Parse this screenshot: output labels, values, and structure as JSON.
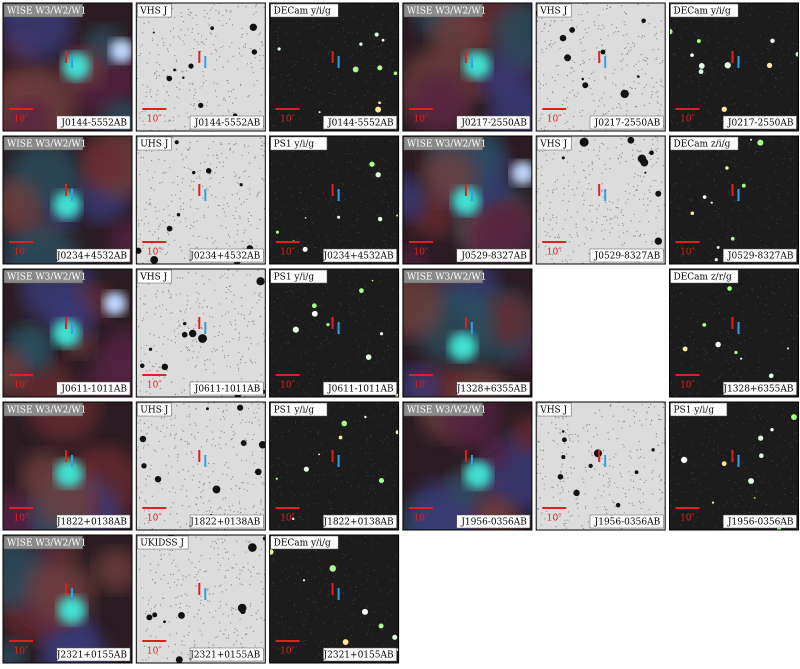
{
  "rows": [
    [
      {
        "band": "WISE W3/W2/W1",
        "object": "J0144-5552AB",
        "scale": "10″"
      },
      {
        "band": "VHS J",
        "object": "J0144-5552AB",
        "scale": "10″"
      },
      {
        "band": "DECam y/i/g",
        "object": "J0144-5552AB",
        "scale": "10″"
      },
      {
        "band": "WISE W3/W2/W1",
        "object": "J0217-2550AB",
        "scale": "10″"
      },
      {
        "band": "VHS J",
        "object": "J0217-2550AB",
        "scale": "10″"
      },
      {
        "band": "DECam y/i/g",
        "object": "J0217-2550AB",
        "scale": "10″"
      }
    ],
    [
      {
        "band": "WISE W3/W2/W1",
        "object": "J0234+4532AB",
        "scale": "10″"
      },
      {
        "band": "UHS J",
        "object": "J0234+4532AB",
        "scale": "10″"
      },
      {
        "band": "PS1 y/i/g",
        "object": "J0234+4532AB",
        "scale": "10″"
      },
      {
        "band": "WISE W3/W2/W1",
        "object": "J0529-8327AB",
        "scale": "10″"
      },
      {
        "band": "VHS J",
        "object": "J0529-8327AB",
        "scale": "10″"
      },
      {
        "band": "DECam z/i/g",
        "object": "J0529-8327AB",
        "scale": "10″"
      }
    ],
    [
      {
        "band": "WISE W3/W2/W1",
        "object": "J0611-1011AB",
        "scale": "10″"
      },
      {
        "band": "VHS J",
        "object": "J0611-1011AB",
        "scale": "10″"
      },
      {
        "band": "PS1 y/i/g",
        "object": "J0611-1011AB",
        "scale": "10″"
      },
      {
        "band": "WISE W3/W2/W1",
        "object": "J1328+6355AB",
        "scale": "10″"
      },
      null,
      {
        "band": "DECam z/r/g",
        "object": "J1328+6355AB",
        "scale": "10″"
      }
    ],
    [
      {
        "band": "WISE W3/W2/W1",
        "object": "J1822+0138AB",
        "scale": "10″"
      },
      {
        "band": "UHS J",
        "object": "J1822+0138AB",
        "scale": "10″"
      },
      {
        "band": "PS1 y/i/g",
        "object": "J1822+0138AB",
        "scale": "10″"
      },
      {
        "band": "WISE W3/W2/W1",
        "object": "J1956-0356AB",
        "scale": "10″"
      },
      {
        "band": "VHS J",
        "object": "J1956-0356AB",
        "scale": "10″"
      },
      {
        "band": "PS1 y/i/g",
        "object": "J1956-0356AB",
        "scale": "10″"
      }
    ],
    [
      {
        "band": "WISE W3/W2/W1",
        "object": "J2321+0155AB",
        "scale": "10″"
      },
      {
        "band": "UKIDSS J",
        "object": "J2321+0155AB",
        "scale": "10″"
      },
      {
        "band": "DECam y/i/g",
        "object": "J2321+0155AB",
        "scale": "10″"
      }
    ]
  ]
}
